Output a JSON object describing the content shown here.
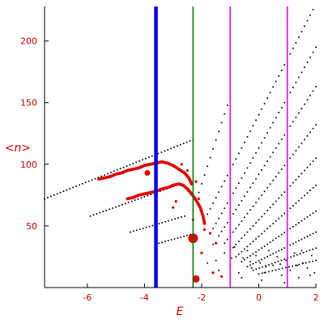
{
  "chart_data": {
    "type": "scatter",
    "title": "",
    "xlabel": "E",
    "ylabel": "<n>",
    "xlim": [
      -7.5,
      2.0
    ],
    "ylim": [
      0,
      228
    ],
    "x_ticks": [
      -6,
      -4,
      -2,
      0,
      2
    ],
    "y_ticks": [
      50,
      100,
      150,
      200
    ],
    "grid": false,
    "legend": "none",
    "colors": {
      "axis": "#000000",
      "tick_labels": "#d00000",
      "black_points": "#000000",
      "red_points": "#e00000",
      "blue_line": "#0000ff",
      "green_line": "#008000",
      "magenta_line": "#ff00ff"
    },
    "vertical_lines": [
      {
        "x": -3.6,
        "color": "#0000ff",
        "width": 4.5
      },
      {
        "x": -2.3,
        "color": "#008000",
        "width": 1.6
      },
      {
        "x": -1.0,
        "color": "#ff00ff",
        "width": 1.6
      },
      {
        "x": 1.0,
        "color": "#ff00ff",
        "width": 1.6
      }
    ],
    "black_curves": [
      {
        "x0": -7.5,
        "x1": -2.3,
        "y0": 72,
        "y1": 120,
        "dx": 0.11
      },
      {
        "x0": -5.9,
        "x1": -3.0,
        "y0": 58,
        "y1": 82,
        "dx": 0.11
      },
      {
        "x0": -4.5,
        "x1": -2.6,
        "y0": 45,
        "y1": 58,
        "dx": 0.11
      },
      {
        "x0": -3.5,
        "x1": -2.4,
        "y0": 36,
        "y1": 43,
        "dx": 0.11
      },
      {
        "x0": -2.3,
        "x1": -1.0,
        "y0": 63,
        "y1": 155,
        "dx": 0.1
      },
      {
        "x0": -1.9,
        "x1": 2.0,
        "y0": 55,
        "y1": 230,
        "dx": 0.1
      },
      {
        "x0": -1.6,
        "x1": 2.0,
        "y0": 48,
        "y1": 195,
        "dx": 0.1
      },
      {
        "x0": -1.4,
        "x1": 2.0,
        "y0": 42,
        "y1": 163,
        "dx": 0.1
      },
      {
        "x0": -1.2,
        "x1": 2.0,
        "y0": 36,
        "y1": 132,
        "dx": 0.1
      },
      {
        "x0": -1.0,
        "x1": 2.0,
        "y0": 30,
        "y1": 105,
        "dx": 0.1
      },
      {
        "x0": -0.8,
        "x1": 2.0,
        "y0": 25,
        "y1": 83,
        "dx": 0.1
      },
      {
        "x0": -0.6,
        "x1": 2.0,
        "y0": 21,
        "y1": 62,
        "dx": 0.1
      },
      {
        "x0": -0.4,
        "x1": 2.0,
        "y0": 17,
        "y1": 45,
        "dx": 0.1
      },
      {
        "x0": -0.2,
        "x1": 2.0,
        "y0": 14,
        "y1": 32,
        "dx": 0.11
      },
      {
        "x0": 0.0,
        "x1": 2.0,
        "y0": 11,
        "y1": 22,
        "dx": 0.12
      }
    ],
    "black_scatter": [
      [
        -1.8,
        20
      ],
      [
        -1.6,
        35
      ],
      [
        -1.4,
        14
      ],
      [
        -1.2,
        28
      ],
      [
        -1.0,
        18
      ],
      [
        -0.85,
        33
      ],
      [
        -0.7,
        12
      ],
      [
        -0.55,
        24
      ],
      [
        -0.4,
        30
      ],
      [
        -0.25,
        16
      ],
      [
        -0.1,
        26
      ],
      [
        0.05,
        20
      ],
      [
        0.2,
        12
      ],
      [
        0.35,
        30
      ],
      [
        0.5,
        18
      ],
      [
        0.65,
        25
      ],
      [
        0.8,
        10
      ],
      [
        0.95,
        22
      ],
      [
        1.1,
        14
      ],
      [
        1.25,
        28
      ],
      [
        1.4,
        8
      ],
      [
        1.55,
        20
      ],
      [
        1.7,
        16
      ],
      [
        1.85,
        26
      ],
      [
        1.95,
        12
      ],
      [
        -1.5,
        22
      ],
      [
        -0.95,
        24
      ],
      [
        -0.3,
        21
      ],
      [
        0.25,
        17
      ],
      [
        0.75,
        19
      ],
      [
        1.35,
        18
      ],
      [
        1.8,
        10
      ],
      [
        -0.6,
        8
      ],
      [
        0.1,
        6
      ],
      [
        0.9,
        4
      ],
      [
        1.5,
        30
      ]
    ],
    "red_upper_branch": [
      [
        -5.6,
        88
      ],
      [
        -5.4,
        89
      ],
      [
        -5.2,
        90
      ],
      [
        -5.0,
        92
      ],
      [
        -4.8,
        93
      ],
      [
        -4.6,
        95
      ],
      [
        -4.4,
        96
      ],
      [
        -4.2,
        97
      ],
      [
        -4.0,
        99
      ],
      [
        -3.8,
        100
      ],
      [
        -3.6,
        101
      ],
      [
        -3.4,
        102
      ],
      [
        -3.2,
        101
      ],
      [
        -3.0,
        99
      ],
      [
        -2.8,
        96
      ],
      [
        -2.6,
        93
      ],
      [
        -2.45,
        89
      ],
      [
        -2.35,
        84
      ]
    ],
    "red_lower_branch": [
      [
        -4.6,
        72
      ],
      [
        -4.4,
        73
      ],
      [
        -4.2,
        75
      ],
      [
        -4.0,
        76
      ],
      [
        -3.8,
        77
      ],
      [
        -3.6,
        78
      ],
      [
        -3.4,
        80
      ],
      [
        -3.2,
        81
      ],
      [
        -3.0,
        83
      ],
      [
        -2.8,
        84
      ],
      [
        -2.65,
        83
      ],
      [
        -2.5,
        80
      ],
      [
        -2.35,
        76
      ],
      [
        -2.2,
        71
      ],
      [
        -2.05,
        65
      ],
      [
        -1.95,
        58
      ],
      [
        -1.9,
        52
      ]
    ],
    "red_scattered": [
      [
        -3.9,
        92
      ],
      [
        -3.0,
        65
      ],
      [
        -2.2,
        86
      ],
      [
        -2.1,
        72
      ],
      [
        -1.9,
        47
      ],
      [
        -1.7,
        44
      ],
      [
        -1.5,
        36
      ],
      [
        -2.5,
        95
      ],
      [
        -2.7,
        100
      ],
      [
        -2.0,
        28
      ],
      [
        -1.6,
        12
      ],
      [
        -1.3,
        9
      ],
      [
        -2.9,
        70
      ],
      [
        -2.3,
        55
      ]
    ],
    "red_large_points": [
      {
        "x": -2.3,
        "y": 40,
        "size": 10
      },
      {
        "x": -3.9,
        "y": 93,
        "size": 5
      },
      {
        "x": -2.2,
        "y": 7,
        "size": 7
      }
    ]
  }
}
